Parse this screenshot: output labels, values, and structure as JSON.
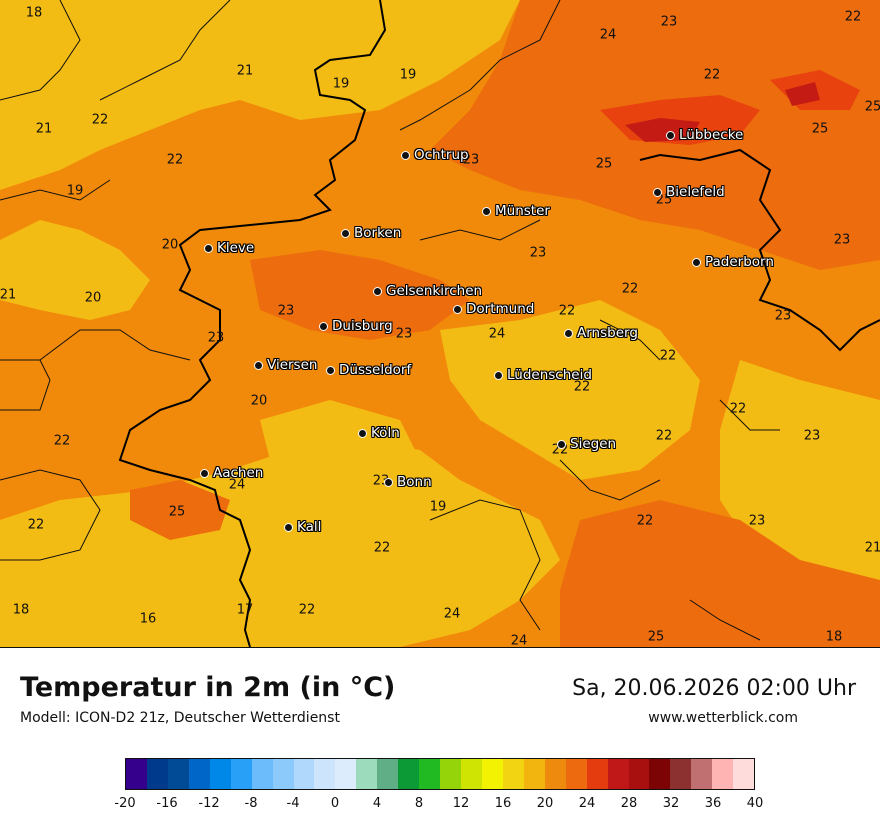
{
  "map": {
    "colors": {
      "t17": "#f5c41a",
      "t20": "#f3bc14",
      "t22": "#f18a0a",
      "t24": "#ed6c0e",
      "t25": "#e8420e",
      "t28": "#c41c14",
      "border": "#000000"
    },
    "values": [
      "18",
      "21",
      "19",
      "19",
      "22",
      "21",
      "22",
      "22",
      "19",
      "20",
      "21",
      "20",
      "23",
      "23",
      "24",
      "22",
      "23",
      "25",
      "25",
      "25",
      "25",
      "23",
      "23",
      "24",
      "23",
      "22",
      "22",
      "23",
      "22",
      "23",
      "22",
      "22",
      "20",
      "22",
      "24",
      "25",
      "23",
      "19",
      "22",
      "22",
      "23",
      "22",
      "23",
      "21",
      "22",
      "22",
      "18",
      "16",
      "17",
      "22",
      "24",
      "24",
      "25",
      "18"
    ],
    "cities": [
      "Ochtrup",
      "Lübbecke",
      "Münster",
      "Bielefeld",
      "Kleve",
      "Borken",
      "Paderborn",
      "Gelsenkirchen",
      "Dortmund",
      "Duisburg",
      "Arnsberg",
      "Viersen",
      "Düsseldorf",
      "Lüdenscheid",
      "Köln",
      "Siegen",
      "Aachen",
      "Bonn",
      "Kall"
    ]
  },
  "footer": {
    "title": "Temperatur in 2m (in °C)",
    "model": "Modell: ICON-D2 21z, Deutscher Wetterdienst",
    "datetime": "Sa, 20.06.2026 02:00 Uhr",
    "site": "www.wetterblick.com"
  },
  "legend": {
    "colors": [
      "#34008c",
      "#003a8c",
      "#004a96",
      "#0066c8",
      "#0088e8",
      "#28a0f8",
      "#6cbcfc",
      "#8ccafc",
      "#b0d8fc",
      "#cce4fc",
      "#dcecfc",
      "#9cdcbc",
      "#60ae86",
      "#0c9a36",
      "#22ba22",
      "#94d408",
      "#d0e404",
      "#f2f202",
      "#f2d412",
      "#f2b40e",
      "#ee8a0e",
      "#ee6a0e",
      "#e43c0e",
      "#c01818",
      "#a81010",
      "#7c0404",
      "#8c3030",
      "#c07070",
      "#ffb4b4",
      "#ffdcdc"
    ],
    "ticks": [
      "-20",
      "-16",
      "-12",
      "-8",
      "-4",
      "0",
      "4",
      "8",
      "12",
      "16",
      "20",
      "24",
      "28",
      "32",
      "36",
      "40"
    ]
  }
}
